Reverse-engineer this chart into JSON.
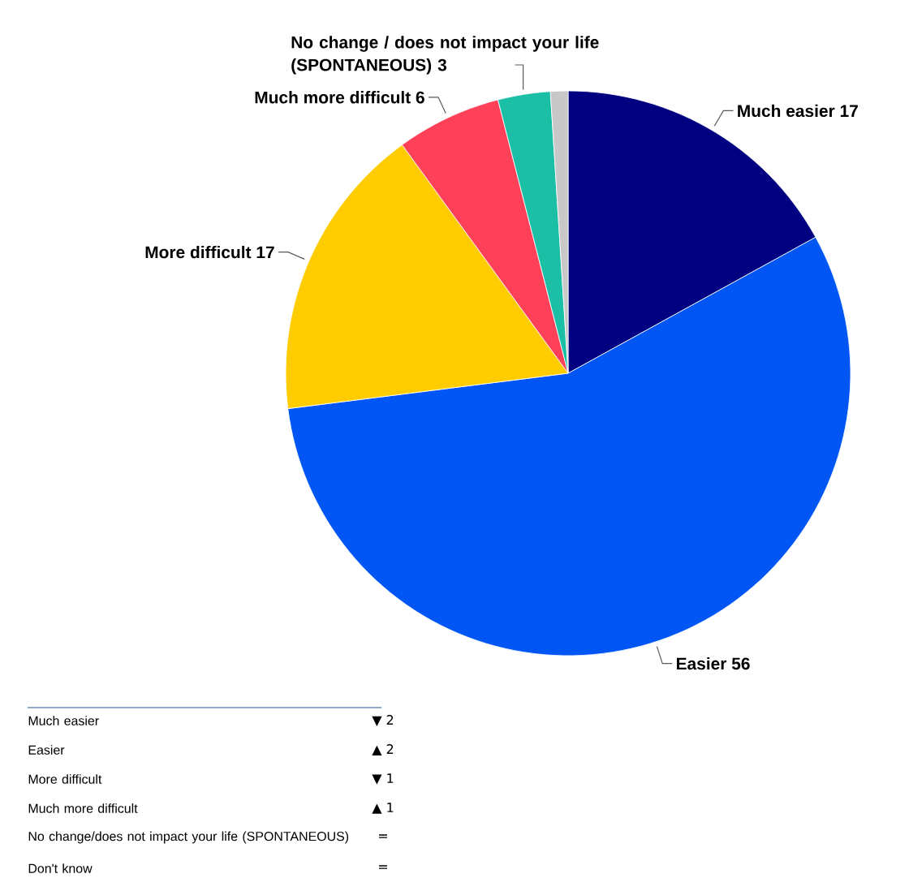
{
  "chart_data": {
    "type": "pie",
    "categories": [
      "Much easier",
      "Easier",
      "More difficult",
      "Much more difficult",
      "No change / does not impact your life (SPONTANEOUS)",
      null
    ],
    "values": [
      17,
      56,
      17,
      6,
      3,
      1
    ],
    "colors": [
      "#000080",
      "#0055f5",
      "#ffcc00",
      "#ff4059",
      "#1abfa6",
      "#c8c8c8"
    ],
    "value_labels": [
      "17",
      "56",
      "17",
      "6",
      "3",
      null
    ],
    "annotations": [
      "Much easier",
      "▼ 2",
      "Easier",
      "▲ 2",
      "More difficult",
      "▼ 1",
      "Much more difficult",
      "▲ 1",
      "No change/does not impact your life (SPONTANEOUS)",
      "=",
      "Don't know",
      "="
    ]
  }
}
